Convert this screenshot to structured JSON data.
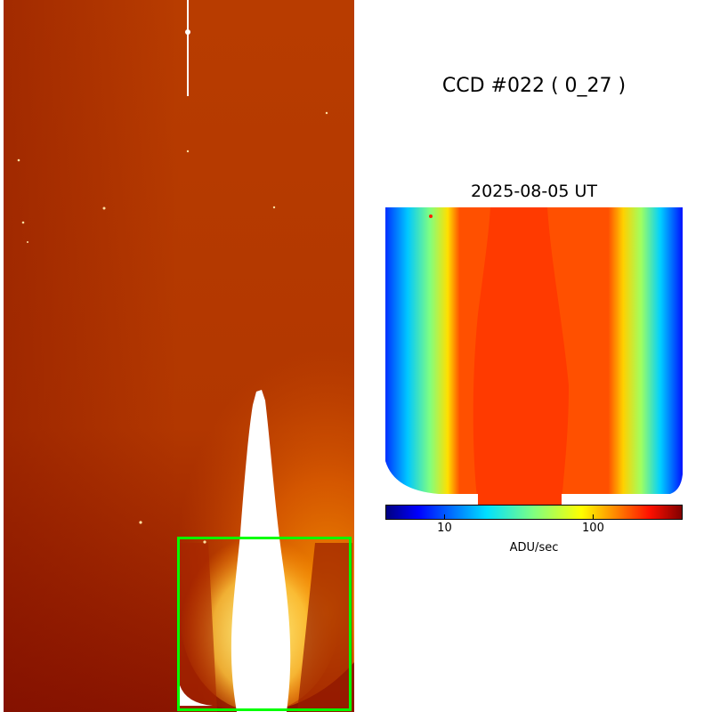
{
  "figure": {
    "title": "CCD #022 ( 0_27 )",
    "zoom_title": "2025-08-05 UT"
  },
  "full_image": {
    "colormap": "orange-heat",
    "highlight_box_color": "#00ff00"
  },
  "zoom_image": {
    "colormap": "jet"
  },
  "colorbar": {
    "label": "ADU/sec",
    "scale": "log",
    "range": [
      4,
      400
    ],
    "ticks": [
      {
        "value": 10,
        "label": "10"
      },
      {
        "value": 100,
        "label": "100"
      }
    ]
  }
}
